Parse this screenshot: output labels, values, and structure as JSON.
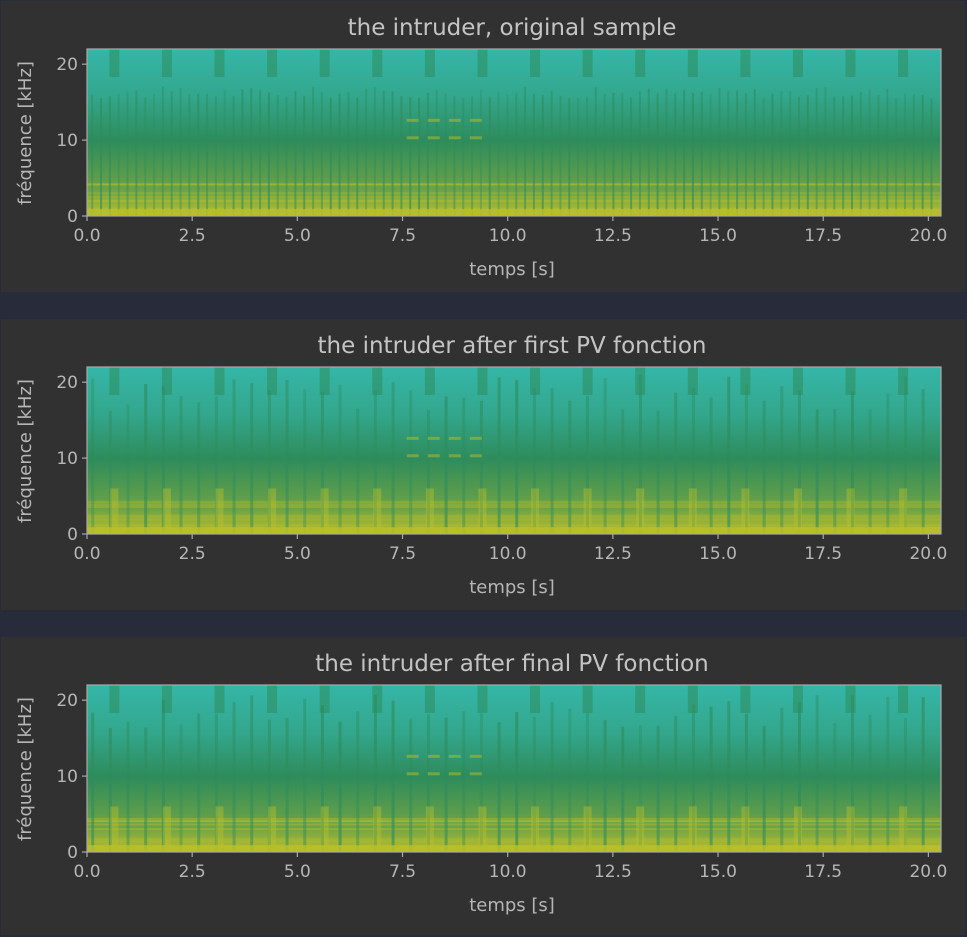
{
  "chart_data": [
    {
      "type": "heatmap",
      "title": "the intruder, original sample",
      "xlabel": "temps [s]",
      "ylabel": "fréquence [kHz]",
      "xlim": [
        0,
        20.3
      ],
      "ylim": [
        0,
        22
      ],
      "x_ticks": [
        "0.0",
        "2.5",
        "5.0",
        "7.5",
        "10.0",
        "12.5",
        "15.0",
        "17.5",
        "20.0"
      ],
      "y_ticks": [
        "0",
        "10",
        "20"
      ],
      "colors": {
        "low": "#35b6a8",
        "mid": "#2e8c5c",
        "high": "#b9be2c"
      }
    },
    {
      "type": "heatmap",
      "title": "the intruder after first PV fonction",
      "xlabel": "temps [s]",
      "ylabel": "fréquence [kHz]",
      "xlim": [
        0,
        20.3
      ],
      "ylim": [
        0,
        22
      ],
      "x_ticks": [
        "0.0",
        "2.5",
        "5.0",
        "7.5",
        "10.0",
        "12.5",
        "15.0",
        "17.5",
        "20.0"
      ],
      "y_ticks": [
        "0",
        "10",
        "20"
      ],
      "colors": {
        "low": "#35b6a8",
        "mid": "#2e8c5c",
        "high": "#b9be2c"
      }
    },
    {
      "type": "heatmap",
      "title": "the intruder after final PV fonction",
      "xlabel": "temps [s]",
      "ylabel": "fréquence [kHz]",
      "xlim": [
        0,
        20.3
      ],
      "ylim": [
        0,
        22
      ],
      "x_ticks": [
        "0.0",
        "2.5",
        "5.0",
        "7.5",
        "10.0",
        "12.5",
        "15.0",
        "17.5",
        "20.0"
      ],
      "y_ticks": [
        "0",
        "10",
        "20"
      ],
      "colors": {
        "low": "#35b6a8",
        "mid": "#2e8c5c",
        "high": "#b9be2c"
      }
    }
  ]
}
